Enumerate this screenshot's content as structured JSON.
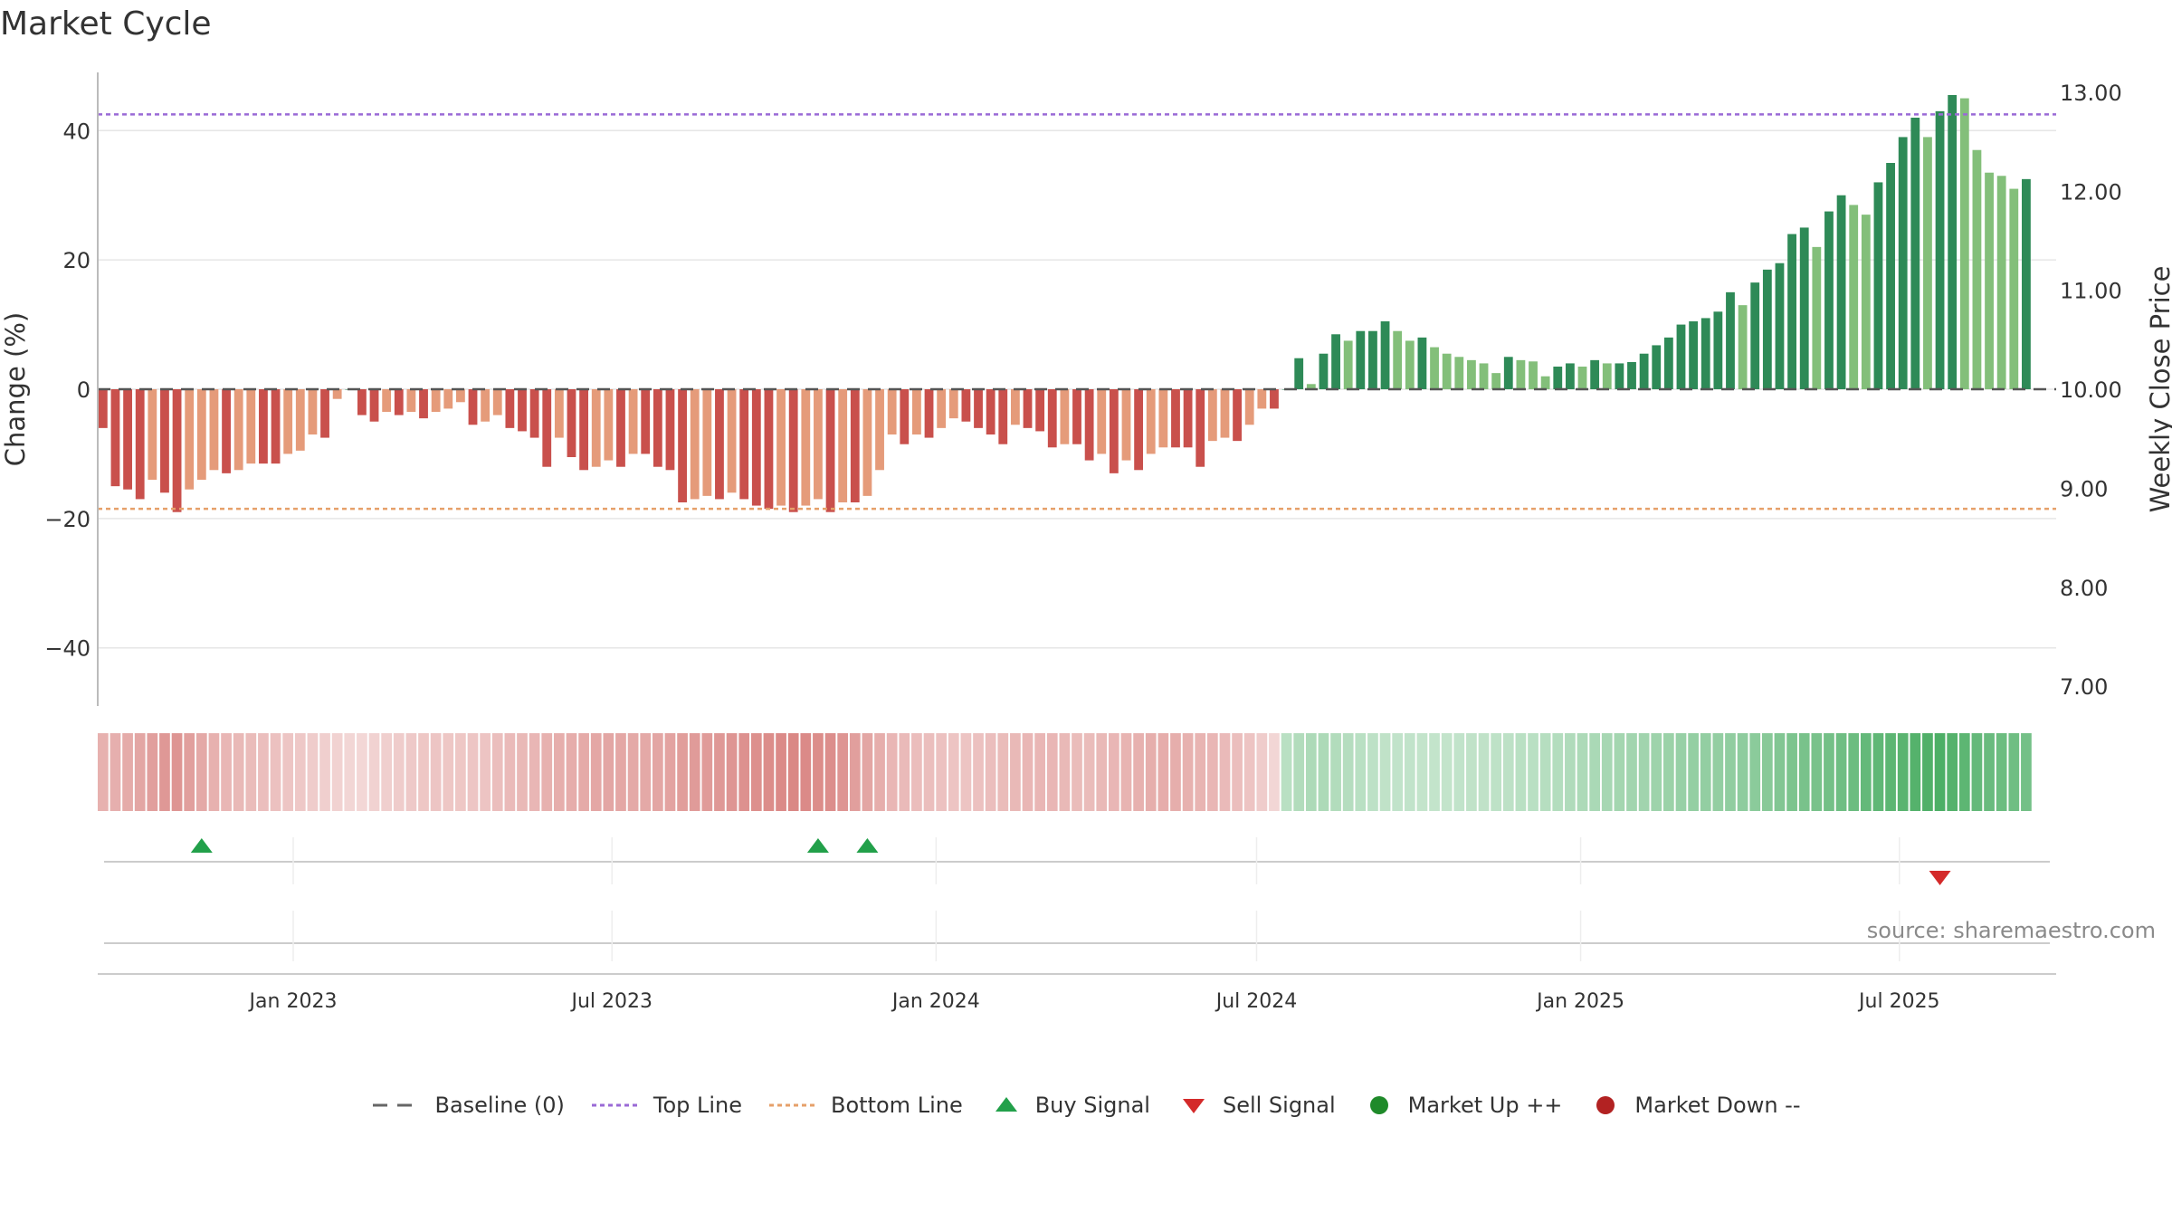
{
  "title": "Market Cycle",
  "source": "source: sharemaestro.com",
  "legend": {
    "baseline": "Baseline (0)",
    "top_line": "Top Line",
    "bottom_line": "Bottom Line",
    "buy_signal": "Buy Signal",
    "sell_signal": "Sell Signal",
    "market_up": "Market Up ++",
    "market_down": "Market Down --"
  },
  "colors": {
    "neg_dark": "#c9504c",
    "neg_light": "#e59b7a",
    "pos_dark": "#2e8a57",
    "pos_light": "#83bf7a",
    "top_line": "#9a6ad6",
    "bottom_line": "#e6a06a",
    "buy": "#22a04a",
    "sell": "#d42a2a",
    "market_up": "#1f8a2a",
    "market_down": "#b22222"
  },
  "chart_data": {
    "type": "bar",
    "ylabel_left": "Change (%)",
    "ylabel_right": "Weekly Close Price",
    "ylim_left": [
      -49,
      49
    ],
    "ylim_right": [
      6.8,
      13.2
    ],
    "yticks_left": [
      40,
      20,
      0,
      -20,
      -40
    ],
    "ytick_labels_left": [
      "40",
      "20",
      "0",
      "−20",
      "−40"
    ],
    "yticks_right": [
      13,
      12,
      11,
      10,
      9,
      8,
      7
    ],
    "ytick_labels_right": [
      "13.00",
      "12.00",
      "11.00",
      "10.00",
      "9.00",
      "8.00",
      "7.00"
    ],
    "top_line": 42.5,
    "bottom_line": -18.5,
    "baseline": 0,
    "xlim": [
      "2022-09-12",
      "2025-09-28"
    ],
    "xticks": [
      "2023-01-01",
      "2023-07-01",
      "2024-01-01",
      "2024-07-01",
      "2025-01-01",
      "2025-07-01"
    ],
    "xtick_labels": [
      "Jan 2023",
      "Jul 2023",
      "Jan 2024",
      "Jul 2024",
      "Jan 2025",
      "Jul 2025"
    ],
    "start_week": "2022-09-15",
    "values": [
      -6,
      -15,
      -15.5,
      -17,
      -14,
      -16,
      -19,
      -15.5,
      -14,
      -12.5,
      -13,
      -12.5,
      -11.5,
      -11.5,
      -11.5,
      -10,
      -9.5,
      -7,
      -7.5,
      -1.5,
      0,
      -4,
      -5,
      -3.5,
      -4,
      -3.5,
      -4.5,
      -3.5,
      -3,
      -2,
      -5.5,
      -5,
      -4,
      -6,
      -6.5,
      -7.5,
      -12,
      -7.5,
      -10.5,
      -12.5,
      -12,
      -11,
      -12,
      -10,
      -10,
      -12,
      -12.5,
      -17.5,
      -17,
      -16.5,
      -17,
      -16,
      -17,
      -18,
      -18.5,
      -18,
      -19,
      -18,
      -17,
      -19,
      -17.5,
      -17.5,
      -16.5,
      -12.5,
      -7,
      -8.5,
      -7,
      -7.5,
      -6,
      -4.5,
      -5,
      -6,
      -7,
      -8.5,
      -5.5,
      -6,
      -6.5,
      -9,
      -8.5,
      -8.5,
      -11,
      -10,
      -13,
      -11,
      -12.5,
      -10,
      -9,
      -9,
      -9,
      -12,
      -8,
      -7.5,
      -8,
      -5.5,
      -3,
      -3,
      0,
      4.8,
      0.8,
      5.5,
      8.5,
      7.5,
      9,
      9,
      10.5,
      9,
      7.5,
      8,
      6.5,
      5.5,
      5,
      4.5,
      4,
      2.5,
      5,
      4.5,
      4.3,
      2,
      3.5,
      4,
      3.5,
      4.5,
      4,
      4,
      4.2,
      5.5,
      6.8,
      8,
      10,
      10.5,
      11,
      12,
      15,
      13,
      16.5,
      18.5,
      19.5,
      24,
      25,
      22,
      27.5,
      30,
      28.5,
      27,
      32,
      35,
      39,
      42,
      39,
      43,
      45.5,
      45,
      37,
      33.5,
      33,
      31,
      32.5
    ],
    "intensity": [
      0.42,
      0.43,
      0.46,
      0.5,
      0.55,
      0.6,
      0.62,
      0.55,
      0.48,
      0.42,
      0.38,
      0.36,
      0.34,
      0.32,
      0.3,
      0.27,
      0.25,
      0.22,
      0.2,
      0.18,
      0.15,
      0.14,
      0.18,
      0.2,
      0.22,
      0.24,
      0.26,
      0.27,
      0.26,
      0.26,
      0.27,
      0.28,
      0.32,
      0.35,
      0.36,
      0.38,
      0.42,
      0.44,
      0.45,
      0.47,
      0.49,
      0.5,
      0.49,
      0.48,
      0.48,
      0.5,
      0.52,
      0.56,
      0.58,
      0.58,
      0.6,
      0.62,
      0.65,
      0.66,
      0.68,
      0.7,
      0.72,
      0.7,
      0.68,
      0.67,
      0.62,
      0.55,
      0.5,
      0.44,
      0.38,
      0.35,
      0.33,
      0.32,
      0.3,
      0.28,
      0.28,
      0.3,
      0.32,
      0.34,
      0.36,
      0.38,
      0.38,
      0.38,
      0.36,
      0.34,
      0.34,
      0.36,
      0.38,
      0.4,
      0.42,
      0.44,
      0.45,
      0.44,
      0.42,
      0.4,
      0.38,
      0.35,
      0.32,
      0.28,
      0.22,
      0.15,
      0.3,
      0.35,
      0.38,
      0.38,
      0.35,
      0.33,
      0.3,
      0.28,
      0.26,
      0.25,
      0.25,
      0.24,
      0.24,
      0.24,
      0.25,
      0.26,
      0.26,
      0.27,
      0.28,
      0.3,
      0.3,
      0.32,
      0.34,
      0.36,
      0.38,
      0.4,
      0.42,
      0.44,
      0.45,
      0.46,
      0.48,
      0.5,
      0.52,
      0.54,
      0.55,
      0.55,
      0.56,
      0.58,
      0.6,
      0.62,
      0.66,
      0.7,
      0.72,
      0.72,
      0.75,
      0.78,
      0.8,
      0.85,
      0.88,
      0.9,
      0.92,
      0.95,
      0.98,
      1.0,
      0.95,
      0.9,
      0.85,
      0.82,
      0.8,
      0.78,
      0.75
    ],
    "buy_signals": [
      "2022-11-10",
      "2023-10-26",
      "2023-11-23"
    ],
    "sell_signals": [
      "2025-07-24"
    ]
  }
}
